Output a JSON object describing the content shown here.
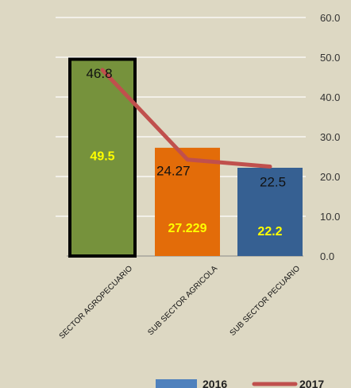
{
  "chart_data": {
    "type": "bar",
    "categories": [
      "SECTOR AGROPECUARIO",
      "SUB SECTOR AGRICOLA",
      "SUB SECTOR PECUARIO"
    ],
    "series": [
      {
        "name": "2016",
        "type": "bar",
        "values": [
          49.5,
          27.229,
          22.2
        ],
        "labels": [
          "49.5",
          "27.229",
          "22.2"
        ],
        "colors": [
          "#76923c",
          "#e36c09",
          "#366092"
        ]
      },
      {
        "name": "2017",
        "type": "line",
        "values": [
          46.8,
          24.27,
          22.5
        ],
        "labels": [
          "46.8",
          "24.27",
          "22.5"
        ],
        "color": "#c0504d"
      }
    ],
    "y_ticks": [
      "0.0",
      "10.0",
      "20.0",
      "30.0",
      "40.0",
      "50.0",
      "60.0"
    ],
    "ylim": [
      0,
      60
    ],
    "grid": true,
    "legend_position": "bottom-right",
    "colors": {
      "background": "#ddd8c3",
      "gridline": "#ffffff",
      "highlight_border": "#000000"
    }
  }
}
